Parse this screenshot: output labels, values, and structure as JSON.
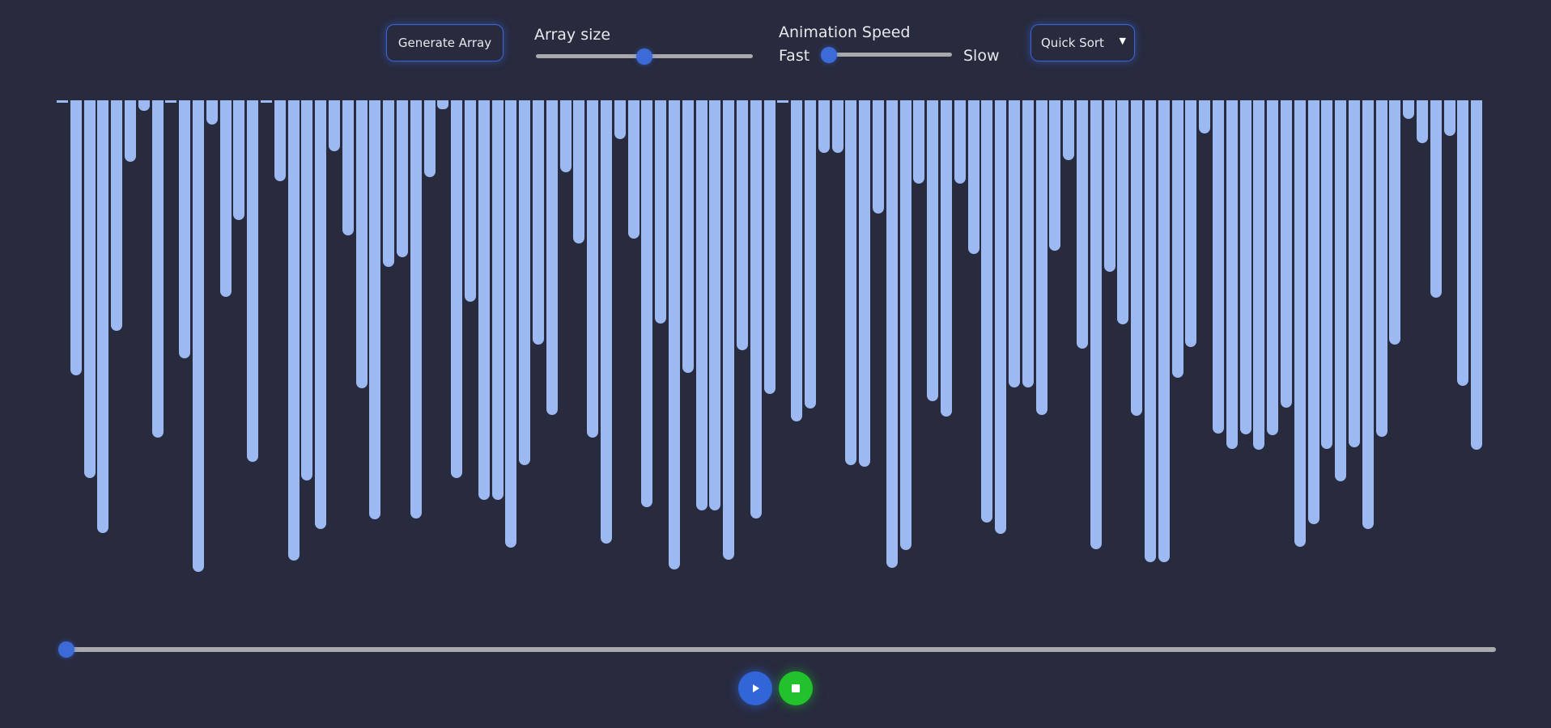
{
  "toolbar": {
    "generate_label": "Generate Array",
    "array_size_label": "Array size",
    "array_size_level": 0.5,
    "speed_label": "Animation Speed",
    "speed_fast": "Fast",
    "speed_slow": "Slow",
    "speed_level": 0.0,
    "algorithm_selected": "Quick Sort"
  },
  "array_values": [
    0,
    340,
    467,
    535,
    285,
    76,
    13,
    417,
    0,
    319,
    583,
    30,
    243,
    148,
    447,
    2,
    100,
    569,
    470,
    530,
    63,
    167,
    356,
    518,
    206,
    194,
    517,
    95,
    11,
    467,
    249,
    494,
    494,
    553,
    451,
    302,
    389,
    89,
    177,
    417,
    548,
    48,
    171,
    503,
    276,
    580,
    337,
    507,
    507,
    568,
    309,
    517,
    363,
    0,
    397,
    381,
    65,
    65,
    451,
    453,
    140,
    578,
    556,
    103,
    372,
    391,
    103,
    190,
    522,
    536,
    355,
    355,
    389,
    186,
    74,
    307,
    555,
    212,
    277,
    390,
    571,
    571,
    343,
    305,
    41,
    412,
    431,
    413,
    432,
    414,
    380,
    552,
    524,
    431,
    471,
    429,
    530,
    416,
    302,
    23,
    53,
    244,
    44,
    353,
    432
  ],
  "timeline": {
    "progress": 0.0
  },
  "colors": {
    "background": "#282a3e",
    "bar": "#9db9f2",
    "accent": "#3c6ad6",
    "play": "#3165d8",
    "stop": "#22c22c"
  },
  "icons": {
    "play": "play-icon",
    "stop": "stop-icon",
    "caret": "caret-down-icon"
  }
}
